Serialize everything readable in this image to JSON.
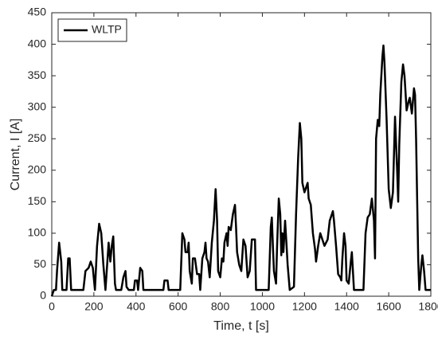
{
  "chart_data": {
    "type": "line",
    "xlabel": "Time, t [s]",
    "ylabel": "Current, I [A]",
    "xlim": [
      0,
      1800
    ],
    "xticks": [
      0,
      200,
      400,
      600,
      800,
      1000,
      1200,
      1400,
      1600,
      1800
    ],
    "ylim": [
      0,
      450
    ],
    "yticks": [
      0,
      50,
      100,
      150,
      200,
      250,
      300,
      350,
      400,
      450
    ],
    "legend": "upper left",
    "grid": false,
    "x": [
      0,
      10,
      20,
      25,
      35,
      45,
      50,
      70,
      78,
      85,
      92,
      150,
      160,
      175,
      185,
      195,
      205,
      215,
      225,
      235,
      245,
      255,
      265,
      270,
      278,
      285,
      292,
      300,
      305,
      330,
      340,
      350,
      355,
      365,
      390,
      395,
      405,
      410,
      420,
      430,
      435,
      530,
      535,
      550,
      555,
      610,
      620,
      630,
      635,
      645,
      650,
      655,
      665,
      670,
      680,
      690,
      700,
      705,
      715,
      725,
      730,
      735,
      742,
      750,
      760,
      770,
      778,
      785,
      790,
      800,
      808,
      815,
      820,
      830,
      835,
      840,
      850,
      860,
      870,
      875,
      880,
      890,
      900,
      910,
      920,
      930,
      940,
      950,
      965,
      970,
      1030,
      1035,
      1040,
      1045,
      1050,
      1055,
      1060,
      1065,
      1070,
      1078,
      1085,
      1090,
      1095,
      1100,
      1108,
      1115,
      1120,
      1130,
      1150,
      1160,
      1170,
      1178,
      1185,
      1190,
      1200,
      1210,
      1215,
      1220,
      1230,
      1240,
      1250,
      1255,
      1265,
      1275,
      1285,
      1295,
      1310,
      1320,
      1330,
      1335,
      1340,
      1350,
      1360,
      1370,
      1375,
      1380,
      1388,
      1395,
      1400,
      1410,
      1420,
      1425,
      1430,
      1435,
      1480,
      1490,
      1500,
      1510,
      1520,
      1530,
      1535,
      1540,
      1548,
      1555,
      1560,
      1570,
      1575,
      1580,
      1590,
      1600,
      1610,
      1620,
      1630,
      1640,
      1645,
      1650,
      1660,
      1668,
      1675,
      1685,
      1695,
      1700,
      1710,
      1720,
      1725,
      1730,
      1740,
      1745,
      1755,
      1760,
      1768,
      1775,
      1800
    ],
    "series": [
      {
        "name": "WLTP",
        "color": "#000000",
        "values": [
          0,
          10,
          10,
          40,
          85,
          55,
          10,
          10,
          60,
          60,
          10,
          10,
          40,
          45,
          55,
          45,
          10,
          80,
          115,
          100,
          50,
          10,
          60,
          85,
          55,
          80,
          95,
          20,
          10,
          10,
          30,
          40,
          15,
          10,
          10,
          25,
          25,
          10,
          45,
          40,
          10,
          10,
          25,
          25,
          10,
          10,
          100,
          90,
          70,
          70,
          85,
          40,
          20,
          60,
          60,
          35,
          35,
          10,
          60,
          70,
          85,
          60,
          55,
          30,
          85,
          120,
          170,
          120,
          40,
          30,
          60,
          55,
          85,
          100,
          80,
          110,
          105,
          130,
          145,
          110,
          70,
          50,
          40,
          90,
          80,
          30,
          40,
          90,
          90,
          10,
          10,
          60,
          110,
          125,
          80,
          40,
          30,
          20,
          80,
          155,
          130,
          65,
          100,
          70,
          120,
          80,
          50,
          10,
          15,
          130,
          220,
          275,
          250,
          180,
          165,
          175,
          180,
          155,
          145,
          100,
          75,
          55,
          80,
          100,
          90,
          80,
          90,
          120,
          130,
          135,
          120,
          80,
          35,
          30,
          25,
          60,
          100,
          80,
          25,
          20,
          55,
          70,
          40,
          10,
          10,
          100,
          125,
          130,
          155,
          120,
          60,
          250,
          280,
          270,
          320,
          380,
          398,
          370,
          280,
          170,
          140,
          165,
          285,
          200,
          150,
          240,
          340,
          368,
          350,
          295,
          310,
          315,
          290,
          330,
          320,
          250,
          60,
          10,
          50,
          65,
          40,
          10,
          10
        ]
      }
    ]
  }
}
